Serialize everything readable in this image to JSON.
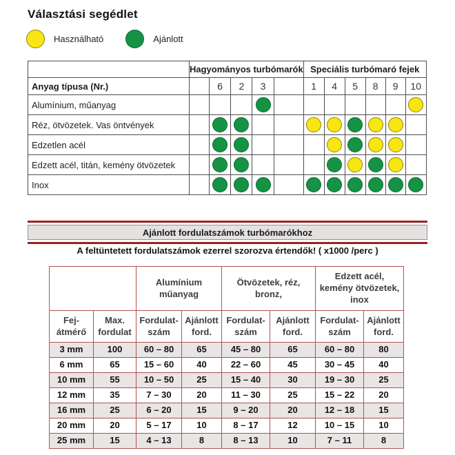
{
  "title": "Választási segédlet",
  "legend": {
    "usable": {
      "label": "Használható",
      "color": "#F8E612"
    },
    "recommended": {
      "label": "Ajánlott",
      "color": "#169245"
    }
  },
  "selection_table": {
    "group_headers": [
      "Hagyományos turbómarók",
      "Speciális turbómaró fejek"
    ],
    "row_header": "Anyag típusa (Nr.)",
    "columns": [
      "6",
      "2",
      "3",
      "1",
      "4",
      "5",
      "8",
      "9",
      "10"
    ],
    "mark_legend": {
      "G": "Ajánlott",
      "Y": "Használható"
    },
    "rows": [
      {
        "label": "Alumínium, műanyag",
        "marks": [
          "",
          "",
          "G",
          "",
          "",
          "",
          "",
          "",
          "Y"
        ]
      },
      {
        "label": "Réz, ötvözetek. Vas öntvények",
        "marks": [
          "G",
          "G",
          "",
          "Y",
          "Y",
          "G",
          "Y",
          "Y",
          ""
        ]
      },
      {
        "label": "Edzetlen acél",
        "marks": [
          "G",
          "G",
          "",
          "",
          "Y",
          "G",
          "Y",
          "Y",
          ""
        ]
      },
      {
        "label": "Edzett acél, titán, kemény ötvözetek",
        "marks": [
          "G",
          "G",
          "",
          "",
          "G",
          "Y",
          "G",
          "Y",
          ""
        ]
      },
      {
        "label": "Inox",
        "marks": [
          "G",
          "G",
          "G",
          "G",
          "G",
          "G",
          "G",
          "G",
          "G"
        ]
      }
    ]
  },
  "speed_section": {
    "banner_title": "Ajánlott fordulatszámok turbómarókhoz",
    "note": "A feltüntetett fordulatszámok ezerrel szorozva értendők! ( x1000 /perc )",
    "table": {
      "group_headers": [
        [
          "Alumínium",
          "műanyag"
        ],
        [
          "Ötvözetek, réz,",
          "bronz,"
        ],
        [
          "Edzett acél,",
          "kemény ötvözetek,",
          "inox"
        ]
      ],
      "column_headers": [
        [
          "Fej-",
          "átmérő"
        ],
        [
          "Max.",
          "fordulat"
        ],
        [
          "Fordulat-",
          "szám"
        ],
        [
          "Ajánlott",
          "ford."
        ],
        [
          "Fordulat-",
          "szám"
        ],
        [
          "Ajánlott",
          "ford."
        ],
        [
          "Fordulat-",
          "szám"
        ],
        [
          "Ajánlott",
          "ford."
        ]
      ],
      "rows": [
        [
          "3 mm",
          "100",
          "60 – 80",
          "65",
          "45 – 80",
          "65",
          "60 – 80",
          "80"
        ],
        [
          "6 mm",
          "65",
          "15 – 60",
          "40",
          "22 – 60",
          "45",
          "30 – 45",
          "40"
        ],
        [
          "10 mm",
          "55",
          "10 – 50",
          "25",
          "15 – 40",
          "30",
          "19 – 30",
          "25"
        ],
        [
          "12 mm",
          "35",
          "7 – 30",
          "20",
          "11 – 30",
          "25",
          "15 – 22",
          "20"
        ],
        [
          "16 mm",
          "25",
          "6 – 20",
          "15",
          "9 – 20",
          "20",
          "12 – 18",
          "15"
        ],
        [
          "20 mm",
          "20",
          "5 – 17",
          "10",
          "8 – 17",
          "12",
          "10 – 15",
          "10"
        ],
        [
          "25 mm",
          "15",
          "4 – 13",
          "8",
          "8 – 13",
          "10",
          "7 – 11",
          "8"
        ]
      ]
    }
  },
  "colors": {
    "dot_green": "#169245",
    "dot_yellow": "#F8E612",
    "banner_red": "#992222",
    "selection_border": "#4d4d4d",
    "speed_table_border": "#B15050",
    "row_shade": "#E9E5E5"
  }
}
